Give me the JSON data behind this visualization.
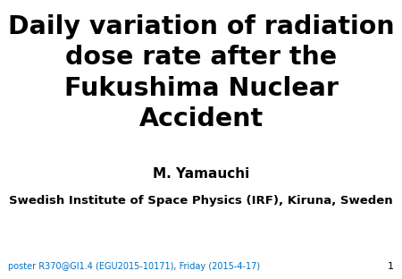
{
  "title_line1": "Daily variation of radiation",
  "title_line2": "dose rate after the",
  "title_line3": "Fukushima Nuclear",
  "title_line4": "Accident",
  "author": "M. Yamauchi",
  "affiliation": "Swedish Institute of Space Physics (IRF), Kiruna, Sweden",
  "footer": "poster R370@GI1.4 (EGU2015-10171), Friday (2015-4-17)",
  "page_number": "1",
  "background_color": "#ffffff",
  "title_color": "#000000",
  "author_color": "#000000",
  "affiliation_color": "#000000",
  "footer_color": "#0070c0",
  "page_number_color": "#000000",
  "title_fontsize": 20.5,
  "author_fontsize": 11,
  "affiliation_fontsize": 9.5,
  "footer_fontsize": 7,
  "page_number_fontsize": 8
}
